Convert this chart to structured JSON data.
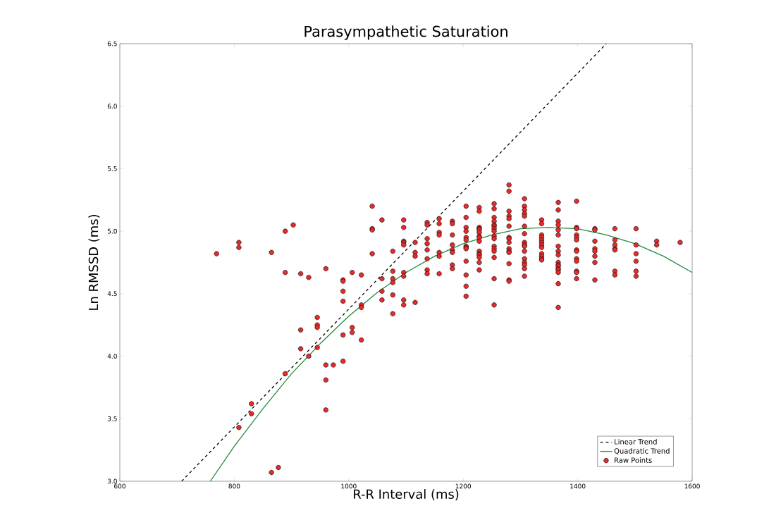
{
  "chart_data": {
    "type": "scatter",
    "title": "Parasympathetic Saturation",
    "xlabel": "R-R Interval (ms)",
    "ylabel": "Ln RMSSD (ms)",
    "xlim": [
      600,
      1600
    ],
    "ylim": [
      3.0,
      6.5
    ],
    "xticks": [
      600,
      800,
      1000,
      1200,
      1400,
      1600
    ],
    "yticks": [
      {
        "value": 3.0,
        "label": "3.0"
      },
      {
        "value": 3.5,
        "label": "3.5"
      },
      {
        "value": 4.0,
        "label": "4.0"
      },
      {
        "value": 4.5,
        "label": "4.5"
      },
      {
        "value": 5.0,
        "label": "5.0"
      },
      {
        "value": 5.5,
        "label": "5.5"
      },
      {
        "value": 6.0,
        "label": "6.0"
      },
      {
        "value": 6.5,
        "label": "6.5"
      }
    ],
    "legend": "bottom right",
    "series": [
      {
        "name": "Linear Trend",
        "type": "line",
        "line_style": "dashed",
        "marker": "none",
        "color": "#000000",
        "x": [
          708,
          1450
        ],
        "values": [
          3.0,
          6.5
        ]
      },
      {
        "name": "Quadratic Trend",
        "type": "line",
        "line_style": "solid",
        "marker": "none",
        "color": "#1e8c3c",
        "x": [
          758,
          800,
          850,
          900,
          950,
          1000,
          1050,
          1100,
          1150,
          1200,
          1250,
          1300,
          1350,
          1400,
          1450,
          1500,
          1550,
          1600
        ],
        "values": [
          3.0,
          3.28,
          3.58,
          3.86,
          4.1,
          4.32,
          4.51,
          4.67,
          4.8,
          4.9,
          4.97,
          5.02,
          5.03,
          5.02,
          4.97,
          4.9,
          4.8,
          4.67
        ]
      },
      {
        "name": "Raw Points",
        "marker": "circle",
        "color": "#e52b2b",
        "x": [
          769,
          808,
          808,
          808,
          830,
          830,
          865,
          865,
          877,
          889,
          889,
          889,
          903,
          916,
          916,
          916,
          930,
          930,
          945,
          945,
          945,
          945,
          960,
          960,
          960,
          960,
          973,
          990,
          990,
          990,
          990,
          990,
          990,
          1006,
          1006,
          1006,
          1022,
          1022,
          1022,
          1022,
          1041,
          1041,
          1041,
          1041,
          1058,
          1058,
          1058,
          1058,
          1077,
          1077,
          1077,
          1077,
          1077,
          1077,
          1096,
          1096,
          1096,
          1096,
          1096,
          1096,
          1096,
          1096,
          1096,
          1116,
          1116,
          1116,
          1116,
          1137,
          1137,
          1137,
          1137,
          1137,
          1137,
          1137,
          1137,
          1158,
          1158,
          1158,
          1158,
          1158,
          1158,
          1158,
          1181,
          1181,
          1181,
          1181,
          1181,
          1181,
          1181,
          1181,
          1205,
          1205,
          1205,
          1205,
          1205,
          1205,
          1205,
          1205,
          1205,
          1205,
          1205,
          1205,
          1205,
          1228,
          1228,
          1228,
          1228,
          1228,
          1228,
          1228,
          1228,
          1228,
          1228,
          1228,
          1228,
          1228,
          1228,
          1228,
          1254,
          1254,
          1254,
          1254,
          1254,
          1254,
          1254,
          1254,
          1254,
          1254,
          1254,
          1254,
          1254,
          1254,
          1254,
          1254,
          1280,
          1280,
          1280,
          1280,
          1280,
          1280,
          1280,
          1280,
          1280,
          1280,
          1280,
          1280,
          1280,
          1280,
          1280,
          1307,
          1307,
          1307,
          1307,
          1307,
          1307,
          1307,
          1307,
          1307,
          1307,
          1307,
          1307,
          1307,
          1307,
          1307,
          1307,
          1337,
          1337,
          1337,
          1337,
          1337,
          1337,
          1337,
          1337,
          1337,
          1337,
          1337,
          1337,
          1366,
          1366,
          1366,
          1366,
          1366,
          1366,
          1366,
          1366,
          1366,
          1366,
          1366,
          1366,
          1366,
          1366,
          1366,
          1366,
          1366,
          1398,
          1398,
          1398,
          1398,
          1398,
          1398,
          1398,
          1398,
          1398,
          1398,
          1398,
          1398,
          1398,
          1430,
          1430,
          1430,
          1430,
          1430,
          1430,
          1430,
          1430,
          1465,
          1465,
          1465,
          1465,
          1465,
          1465,
          1465,
          1502,
          1502,
          1502,
          1502,
          1502,
          1502,
          1538,
          1538,
          1579
        ],
        "values": [
          4.82,
          4.91,
          4.87,
          3.43,
          3.62,
          3.54,
          4.83,
          3.07,
          3.11,
          5.0,
          4.67,
          3.86,
          5.05,
          4.66,
          4.21,
          4.06,
          4.63,
          4.0,
          4.31,
          4.25,
          4.23,
          4.07,
          4.7,
          3.93,
          3.81,
          3.57,
          3.93,
          4.61,
          4.6,
          4.52,
          4.44,
          4.17,
          3.96,
          4.67,
          4.23,
          4.19,
          4.65,
          4.41,
          4.39,
          4.13,
          5.2,
          5.02,
          5.01,
          4.82,
          5.09,
          4.62,
          4.52,
          4.45,
          4.84,
          4.68,
          4.62,
          4.59,
          4.49,
          4.34,
          5.09,
          5.03,
          4.92,
          4.91,
          4.89,
          4.67,
          4.64,
          4.45,
          4.41,
          4.91,
          4.83,
          4.8,
          4.43,
          5.07,
          5.05,
          4.94,
          4.9,
          4.85,
          4.78,
          4.69,
          4.66,
          5.1,
          5.06,
          4.99,
          4.97,
          4.83,
          4.8,
          4.66,
          5.08,
          5.06,
          4.97,
          4.89,
          4.85,
          4.83,
          4.73,
          4.7,
          5.2,
          5.11,
          5.03,
          5.0,
          4.95,
          4.93,
          4.88,
          4.87,
          4.86,
          4.76,
          4.65,
          4.56,
          4.48,
          5.19,
          5.16,
          5.03,
          5.02,
          5.01,
          4.99,
          4.96,
          4.95,
          4.92,
          4.84,
          4.82,
          4.81,
          4.79,
          4.75,
          4.69,
          5.22,
          5.18,
          5.11,
          5.08,
          5.05,
          5.04,
          5.02,
          5.0,
          4.96,
          4.94,
          4.88,
          4.86,
          4.84,
          4.79,
          4.62,
          4.41,
          5.37,
          5.32,
          5.16,
          5.12,
          5.1,
          5.04,
          4.95,
          4.94,
          4.91,
          4.86,
          4.84,
          4.83,
          4.74,
          4.61,
          4.6,
          5.26,
          5.2,
          5.17,
          5.14,
          5.12,
          5.04,
          4.98,
          4.91,
          4.89,
          4.88,
          4.84,
          4.78,
          4.75,
          4.73,
          4.7,
          4.64,
          5.09,
          5.06,
          4.97,
          4.95,
          4.93,
          4.91,
          4.89,
          4.87,
          4.82,
          4.8,
          4.78,
          4.77,
          5.23,
          5.17,
          5.08,
          5.05,
          5.01,
          4.97,
          4.88,
          4.84,
          4.81,
          4.75,
          4.73,
          4.72,
          4.7,
          4.69,
          4.67,
          4.58,
          4.39,
          5.24,
          5.03,
          5.02,
          4.97,
          4.95,
          4.93,
          4.85,
          4.84,
          4.78,
          4.76,
          4.68,
          4.67,
          4.62,
          5.02,
          5.01,
          4.92,
          4.86,
          4.84,
          4.8,
          4.75,
          4.61,
          5.02,
          4.93,
          4.89,
          4.86,
          4.85,
          4.68,
          4.65,
          5.02,
          4.89,
          4.82,
          4.76,
          4.68,
          4.64,
          4.92,
          4.89,
          4.91
        ]
      }
    ]
  }
}
